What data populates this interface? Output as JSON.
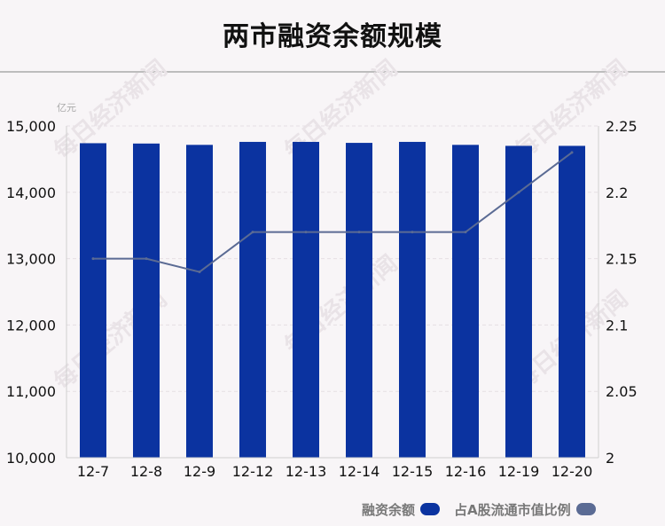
{
  "title": "两市融资余额规模",
  "chart_data": {
    "type": "bar",
    "title": "两市融资余额规模",
    "unit_left": "亿元",
    "categories": [
      "12-7",
      "12-8",
      "12-9",
      "12-12",
      "12-13",
      "12-14",
      "12-15",
      "12-16",
      "12-19",
      "12-20"
    ],
    "series": [
      {
        "name": "融资余额",
        "type": "bar",
        "axis": "left",
        "color": "#0b33a0",
        "values": [
          14740,
          14735,
          14715,
          14760,
          14760,
          14745,
          14760,
          14715,
          14700,
          14700
        ]
      },
      {
        "name": "占A股流通市值比例",
        "type": "line",
        "axis": "right",
        "color": "#5b6b94",
        "values": [
          2.15,
          2.15,
          2.14,
          2.17,
          2.17,
          2.17,
          2.17,
          2.17,
          2.2,
          2.23
        ]
      }
    ],
    "ylim_left": [
      10000,
      15000
    ],
    "yticks_left": [
      "10,000",
      "11,000",
      "12,000",
      "13,000",
      "14,000",
      "15,000"
    ],
    "ylim_right": [
      2,
      2.25
    ],
    "yticks_right": [
      "2",
      "2.05",
      "2.1",
      "2.15",
      "2.2",
      "2.25"
    ],
    "grid": true,
    "legend_position": "bottom-right"
  },
  "watermark": "每日经济新闻"
}
